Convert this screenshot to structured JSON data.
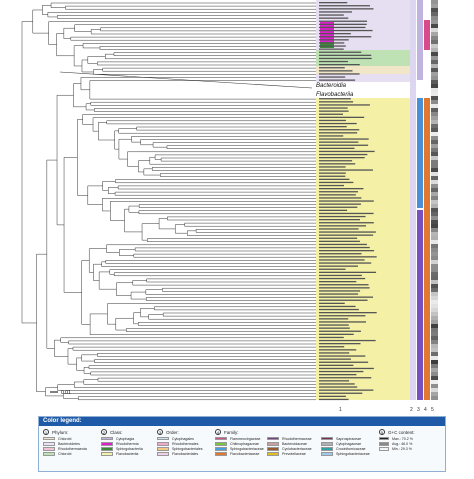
{
  "scale_bar": "0.01",
  "tree_labels": {
    "bacteroidia": "Bacteroidia",
    "flavobacteriia": "Flavobacteriia"
  },
  "bottom_col_numbers": [
    "1",
    "2",
    "3",
    "4",
    "5"
  ],
  "legend": {
    "title": "Color legend:",
    "sections": [
      {
        "num": "1",
        "name": "Phylum:",
        "entries": [
          {
            "label": "Chlorobi",
            "color": "#f1e6c8"
          },
          {
            "label": "Bacteroidetes",
            "color": "#ece2f5"
          },
          {
            "label": "Rhodothermaeota",
            "color": "#f6c3d6"
          },
          {
            "label": "Chlorobi",
            "color": "#bfe2b4"
          }
        ]
      },
      {
        "num": "2",
        "name": "Class:",
        "entries": [
          {
            "label": "Cytophagia",
            "color": "#c0b3e0"
          },
          {
            "label": "Rhodothermia",
            "color": "#e020d0"
          },
          {
            "label": "Sphingobacteriia",
            "color": "#3a8a3a"
          },
          {
            "label": "Flavobacteriia",
            "color": "#f2f2a8"
          }
        ]
      },
      {
        "num": "3",
        "name": "Order:",
        "entries": [
          {
            "label": "Cytophagales",
            "color": "#c5e6f6"
          },
          {
            "label": "Rhodothermales",
            "color": "#f2a8c8"
          },
          {
            "label": "Sphingobacteriales",
            "color": "#f7c680"
          },
          {
            "label": "Flavobacteriales",
            "color": "#f0d0e8"
          }
        ]
      },
      {
        "num": "4",
        "name": "Family:",
        "entries": [
          {
            "label": "Flammeovirgaceae",
            "color": "#d84a8a"
          },
          {
            "label": "Chitinophagaceae",
            "color": "#76c442"
          },
          {
            "label": "Sphingobacteriaceae",
            "color": "#4aa0d8"
          },
          {
            "label": "Flavobacteriaceae",
            "color": "#e07830"
          }
        ]
      },
      {
        "num": "",
        "name": "",
        "entries": [
          {
            "label": "Rhodothermaceae",
            "color": "#7a3d8a"
          },
          {
            "label": "Bacteroidaceae",
            "color": "#c8a0a0"
          },
          {
            "label": "Cyclobacteriaceae",
            "color": "#9a5a30"
          },
          {
            "label": "Prevotellaceae",
            "color": "#e0c020"
          }
        ]
      },
      {
        "num": "",
        "name": "",
        "entries": [
          {
            "label": "Saprospiraceae",
            "color": "#7a3050"
          },
          {
            "label": "Cytophagaceae",
            "color": "#b0b0b0"
          },
          {
            "label": "Crocinitomicaceae",
            "color": "#30a0a0"
          },
          {
            "label": "Sphingobacteriaceae",
            "color": "#a0c8e8"
          }
        ]
      }
    ],
    "gc": {
      "num": "5",
      "name": "G+C content:",
      "max_label": "Max.: 70.2 %",
      "avg_label": "Avg.: 46.0 %",
      "min_label": "Min.: 29.3 %"
    }
  },
  "colors": {
    "flavo_band": "#f4f1a6",
    "bacteroidia_band": "#e6dff2",
    "col2_flavo": "#ddd6f0",
    "col3_flavo": "#4a90d6",
    "col4_flavo": "#e07830",
    "col3_bottom": "#7a50c0"
  }
}
